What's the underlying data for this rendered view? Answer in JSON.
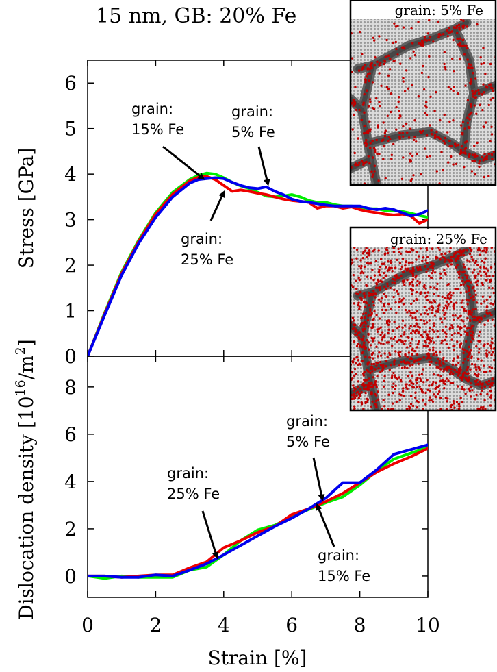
{
  "title": "15 nm, GB: 20% Fe",
  "colors": {
    "grain_5": "#0000ee",
    "grain_15": "#00ee00",
    "grain_25": "#ee0000",
    "gb_particles": "#c00000"
  },
  "insets": [
    {
      "id": "inset-5",
      "label": "grain: 5% Fe",
      "fe_fraction": 0.05
    },
    {
      "id": "inset-25",
      "label": "grain: 25% Fe",
      "fe_fraction": 0.25
    }
  ],
  "chart_data": [
    {
      "type": "line",
      "id": "stress",
      "xlabel": "",
      "ylabel": "Stress [GPa]",
      "xlim": [
        0,
        10
      ],
      "ylim": [
        0,
        6.5
      ],
      "yticks": [
        "0",
        "1",
        "2",
        "3",
        "4",
        "5",
        "6"
      ],
      "series": [
        {
          "name": "grain: 15% Fe",
          "color": "#00ee00",
          "x": [
            0,
            0.5,
            1,
            1.5,
            2,
            2.5,
            3,
            3.25,
            3.5,
            3.75,
            4,
            4.25,
            4.5,
            4.75,
            5,
            5.25,
            5.5,
            5.75,
            6,
            6.25,
            6.5,
            6.75,
            7,
            7.25,
            7.5,
            7.75,
            8,
            8.25,
            8.5,
            8.75,
            9,
            9.25,
            9.5,
            9.75,
            10
          ],
          "y": [
            0,
            0.95,
            1.85,
            2.55,
            3.15,
            3.6,
            3.88,
            3.97,
            4.02,
            4.0,
            3.92,
            3.82,
            3.74,
            3.68,
            3.6,
            3.52,
            3.5,
            3.52,
            3.55,
            3.5,
            3.42,
            3.38,
            3.38,
            3.33,
            3.3,
            3.3,
            3.28,
            3.24,
            3.24,
            3.2,
            3.2,
            3.18,
            3.14,
            3.09,
            3.05
          ]
        },
        {
          "name": "grain: 25% Fe",
          "color": "#ee0000",
          "x": [
            0,
            0.5,
            1,
            1.5,
            2,
            2.5,
            3,
            3.25,
            3.5,
            3.75,
            4,
            4.25,
            4.5,
            4.75,
            5,
            5.25,
            5.5,
            5.75,
            6,
            6.25,
            6.5,
            6.75,
            7,
            7.25,
            7.5,
            7.75,
            8,
            8.25,
            8.5,
            8.75,
            9,
            9.25,
            9.5,
            9.75,
            10
          ],
          "y": [
            0,
            0.93,
            1.82,
            2.52,
            3.12,
            3.56,
            3.85,
            3.93,
            3.95,
            3.88,
            3.75,
            3.62,
            3.65,
            3.62,
            3.58,
            3.55,
            3.5,
            3.45,
            3.42,
            3.4,
            3.38,
            3.25,
            3.3,
            3.3,
            3.25,
            3.28,
            3.22,
            3.18,
            3.15,
            3.12,
            3.1,
            3.12,
            3.08,
            2.92,
            3.0
          ]
        },
        {
          "name": "grain: 5% Fe",
          "color": "#0000ee",
          "x": [
            0,
            0.5,
            1,
            1.5,
            2,
            2.5,
            3,
            3.25,
            3.5,
            3.75,
            4,
            4.25,
            4.5,
            4.75,
            5,
            5.25,
            5.5,
            5.75,
            6,
            6.25,
            6.5,
            6.75,
            7,
            7.25,
            7.5,
            7.75,
            8,
            8.25,
            8.5,
            8.75,
            9,
            9.25,
            9.5,
            9.75,
            10
          ],
          "y": [
            0,
            0.9,
            1.78,
            2.48,
            3.05,
            3.5,
            3.8,
            3.88,
            3.9,
            3.92,
            3.9,
            3.82,
            3.75,
            3.7,
            3.68,
            3.72,
            3.62,
            3.55,
            3.45,
            3.4,
            3.38,
            3.35,
            3.32,
            3.3,
            3.3,
            3.3,
            3.3,
            3.25,
            3.22,
            3.25,
            3.22,
            3.15,
            3.08,
            3.12,
            3.2
          ]
        }
      ],
      "annotations": [
        {
          "text": [
            "grain:",
            "15% Fe"
          ],
          "points_to": [
            3.4,
            3.9
          ]
        },
        {
          "text": [
            "grain:",
            "5% Fe"
          ],
          "points_to": [
            5.3,
            3.78
          ]
        },
        {
          "text": [
            "grain:",
            "25% Fe"
          ],
          "points_to": [
            4.0,
            3.6
          ]
        }
      ]
    },
    {
      "type": "line",
      "id": "dislocation",
      "xlabel": "Strain [%]",
      "ylabel": "Dislocation density [10^16/m^2]",
      "xlim": [
        0,
        10
      ],
      "ylim": [
        -0.9,
        9.3
      ],
      "xticks": [
        "0",
        "2",
        "4",
        "6",
        "8",
        "10"
      ],
      "yticks": [
        "0",
        "2",
        "4",
        "6",
        "8"
      ],
      "series": [
        {
          "name": "grain: 15% Fe",
          "color": "#00ee00",
          "x": [
            0,
            0.5,
            1,
            1.5,
            2,
            2.5,
            3,
            3.5,
            4,
            4.5,
            5,
            5.5,
            6,
            6.5,
            7,
            7.5,
            8,
            8.5,
            9,
            9.5,
            10
          ],
          "y": [
            0,
            -0.1,
            0.0,
            -0.05,
            -0.05,
            -0.05,
            0.25,
            0.38,
            0.9,
            1.5,
            1.95,
            2.15,
            2.5,
            2.82,
            3.1,
            3.35,
            3.85,
            4.45,
            4.95,
            5.2,
            5.45
          ]
        },
        {
          "name": "grain: 25% Fe",
          "color": "#ee0000",
          "x": [
            0,
            0.5,
            1,
            1.5,
            2,
            2.5,
            3,
            3.5,
            4,
            4.5,
            5,
            5.5,
            6,
            6.5,
            7,
            7.5,
            8,
            8.5,
            9,
            9.5,
            10
          ],
          "y": [
            0,
            0.0,
            -0.05,
            0.0,
            0.05,
            0.05,
            0.35,
            0.6,
            1.2,
            1.5,
            1.85,
            2.1,
            2.6,
            2.85,
            3.15,
            3.5,
            3.95,
            4.4,
            4.75,
            5.05,
            5.4
          ]
        },
        {
          "name": "grain: 5% Fe",
          "color": "#0000ee",
          "x": [
            0,
            0.5,
            1,
            1.5,
            2,
            2.5,
            3,
            3.5,
            4,
            4.5,
            5,
            5.5,
            6,
            6.5,
            7,
            7.5,
            8,
            8.5,
            9,
            9.5,
            10
          ],
          "y": [
            0,
            0.0,
            -0.05,
            -0.05,
            0.05,
            0.0,
            0.25,
            0.52,
            0.9,
            1.3,
            1.7,
            2.1,
            2.45,
            2.85,
            3.3,
            3.95,
            3.95,
            4.5,
            5.15,
            5.35,
            5.55
          ]
        }
      ],
      "annotations": [
        {
          "text": [
            "grain:",
            "25% Fe"
          ],
          "points_to": [
            3.8,
            0.8
          ]
        },
        {
          "text": [
            "grain:",
            "5% Fe"
          ],
          "points_to": [
            6.9,
            3.25
          ]
        },
        {
          "text": [
            "grain:",
            "15% Fe"
          ],
          "points_to": [
            6.75,
            3.0
          ]
        }
      ]
    }
  ]
}
